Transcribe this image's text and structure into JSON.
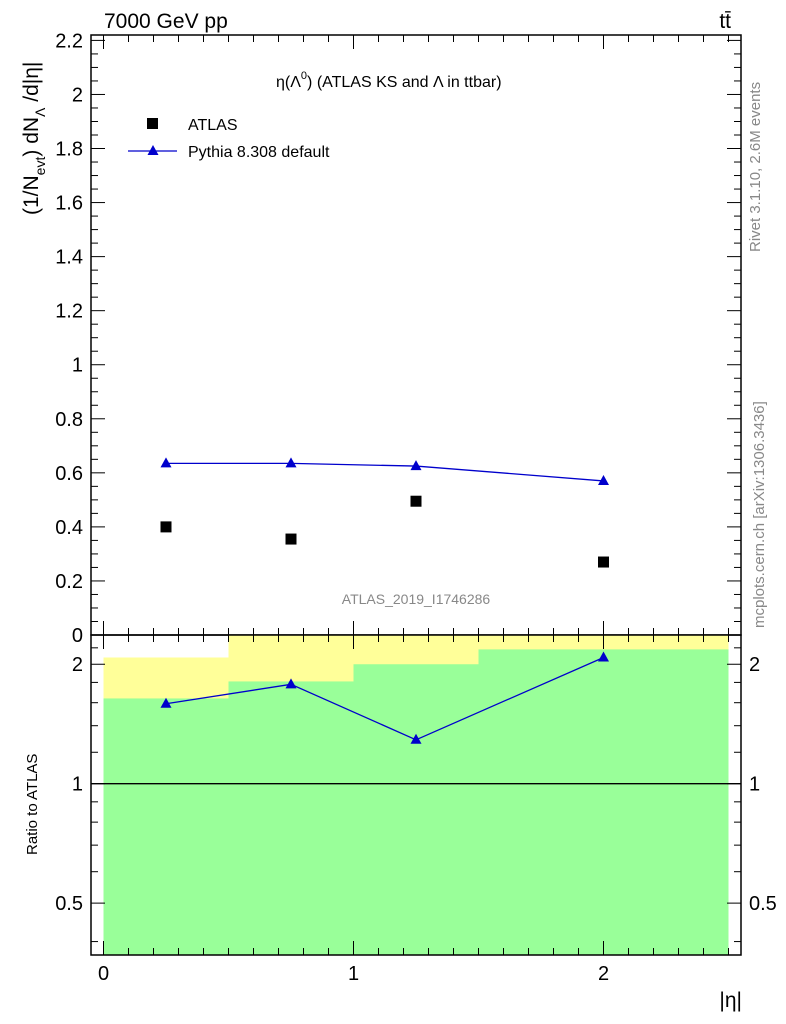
{
  "header": {
    "energy_label": "7000 GeV pp",
    "process_label": "tt̄"
  },
  "side_text": {
    "rivet": "Rivet 3.1.10,  2.6M events",
    "mcplots": "mcplots.cern.ch [arXiv:1306.3436]"
  },
  "chart_data": [
    {
      "type": "scatter",
      "title": "η(Λ⁰) (ATLAS KS and Λ in ttbar)",
      "title_parts": {
        "a": "η(Λ",
        "sup": "0",
        "b": ") (ATLAS KS and Λ in ttbar)"
      },
      "ylabel_parts": {
        "p1": "(1/N",
        "s1": "evt",
        "p2": ") dN",
        "s2": "Λ",
        "p3": " /d|η|"
      },
      "xlabel": "",
      "watermark": "ATLAS_2019_I1746286",
      "xlim": [
        -0.05,
        2.55
      ],
      "ylim": [
        0,
        2.22
      ],
      "y_ticks": [
        0,
        0.2,
        0.4,
        0.6,
        0.8,
        1,
        1.2,
        1.4,
        1.6,
        1.8,
        2,
        2.2
      ],
      "y_tick_labels": [
        "0",
        "0.2",
        "0.4",
        "0.6",
        "0.8",
        "1",
        "1.2",
        "1.4",
        "1.6",
        "1.8",
        "2",
        "2.2"
      ],
      "legend_position": "top-left",
      "series": [
        {
          "name": "ATLAS",
          "marker": "square",
          "color": "#000000",
          "x": [
            0.25,
            0.75,
            1.25,
            2.0
          ],
          "y": [
            0.4,
            0.355,
            0.495,
            0.27
          ]
        },
        {
          "name": "Pythia 8.308 default",
          "marker": "triangle",
          "color": "#0000cc",
          "x": [
            0.25,
            0.75,
            1.25,
            2.0
          ],
          "y": [
            0.635,
            0.635,
            0.625,
            0.57
          ]
        }
      ]
    },
    {
      "type": "line",
      "ylabel": "Ratio to ATLAS",
      "xlabel": "|η|",
      "xlim": [
        -0.05,
        2.55
      ],
      "ylim": [
        0.37,
        2.37
      ],
      "y_scale": "log",
      "x_ticks": [
        0,
        1,
        2
      ],
      "x_tick_labels": [
        "0",
        "1",
        "2"
      ],
      "y_ticks": [
        0.5,
        1,
        2
      ],
      "y_tick_labels": [
        "0.5",
        "1",
        "2"
      ],
      "reference_line": 1,
      "bands": [
        {
          "x_low": 0.0,
          "x_high": 0.5,
          "yellow": [
            0.395,
            2.08
          ],
          "green": [
            0.37,
            1.64
          ]
        },
        {
          "x_low": 0.5,
          "x_high": 1.0,
          "yellow": [
            0.37,
            2.37
          ],
          "green": [
            0.37,
            1.81
          ]
        },
        {
          "x_low": 1.0,
          "x_high": 1.5,
          "yellow": [
            0.37,
            2.37
          ],
          "green": [
            0.37,
            2.0
          ]
        },
        {
          "x_low": 1.5,
          "x_high": 2.5,
          "yellow": [
            0.37,
            2.37
          ],
          "green": [
            0.37,
            2.18
          ]
        }
      ],
      "band_colors": {
        "yellow": "#ffff99",
        "green": "#99ff99"
      },
      "series": [
        {
          "name": "Pythia 8.308 default",
          "color": "#0000cc",
          "x": [
            0.25,
            0.75,
            1.25,
            2.0
          ],
          "y": [
            1.59,
            1.78,
            1.29,
            2.08
          ]
        }
      ]
    }
  ]
}
